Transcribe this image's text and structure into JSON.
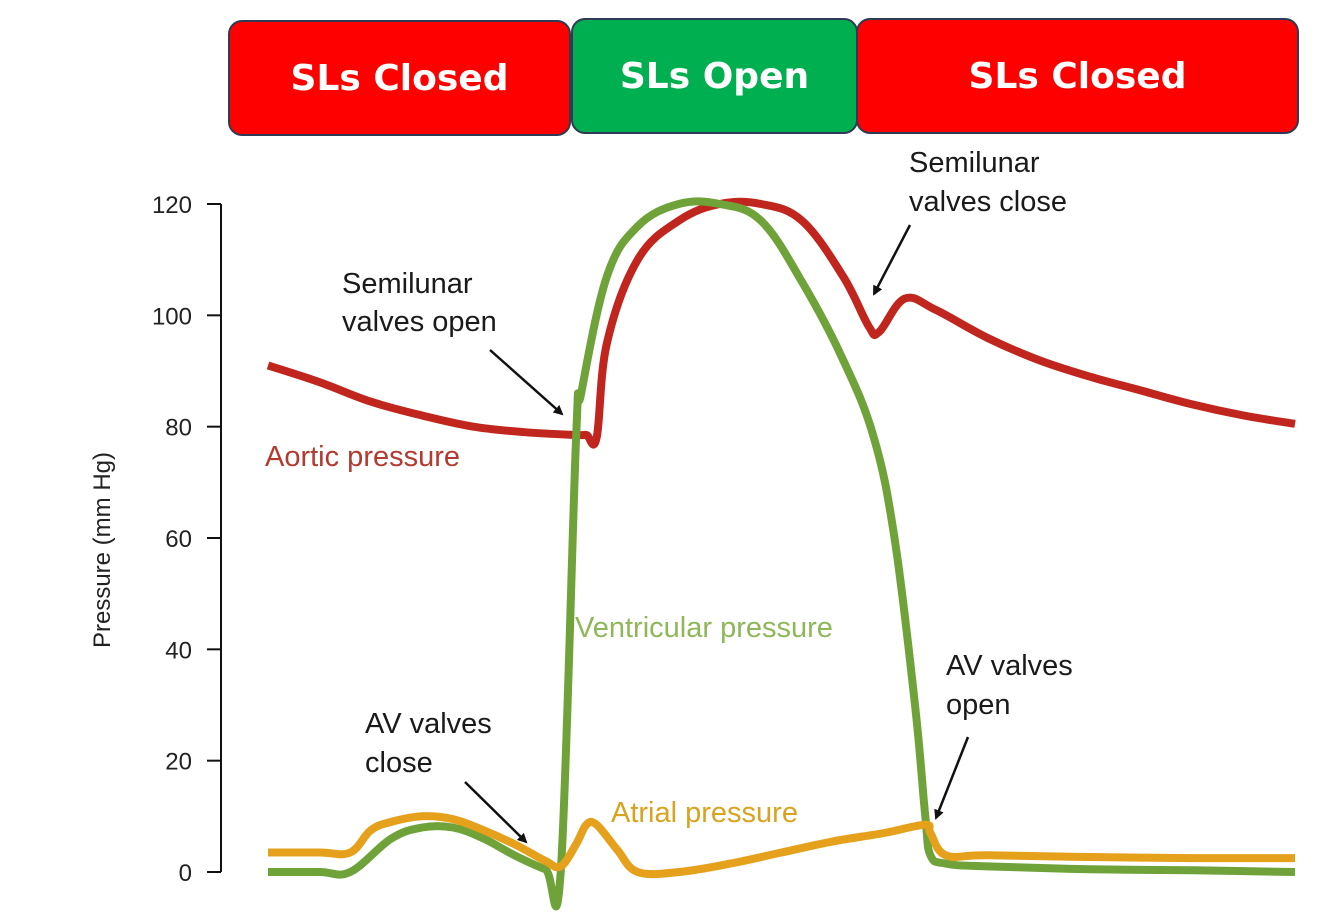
{
  "phase_bars": [
    {
      "label": "SLs Closed",
      "color": "#ff0000"
    },
    {
      "label": "SLs Open",
      "color": "#00b050"
    },
    {
      "label": "SLs Closed",
      "color": "#ff0000"
    }
  ],
  "colors": {
    "aortic": "#c0261e",
    "ventricular": "#6fa33a",
    "atrial": "#e5a11c",
    "aortic_label": "#b23a30",
    "ventricular_label": "#8fb75a",
    "atrial_label": "#d9a21f"
  },
  "annotations": {
    "sl_open": [
      "Semilunar",
      "valves open"
    ],
    "sl_close": [
      "Semilunar",
      "valves close"
    ],
    "av_close": [
      "AV valves",
      "close"
    ],
    "av_open": [
      "AV valves",
      "open"
    ]
  },
  "chart_data": {
    "type": "line",
    "xlabel": "",
    "ylabel": "Pressure (mm Hg)",
    "ylim": [
      0,
      120
    ],
    "yticks": [
      0,
      20,
      40,
      60,
      80,
      100,
      120
    ],
    "xlim": [
      0,
      1
    ],
    "series": [
      {
        "name": "Aortic pressure",
        "x": [
          0.0,
          0.05,
          0.1,
          0.15,
          0.2,
          0.25,
          0.3,
          0.31,
          0.32,
          0.33,
          0.36,
          0.4,
          0.44,
          0.48,
          0.52,
          0.56,
          0.585,
          0.595,
          0.62,
          0.65,
          0.7,
          0.75,
          0.8,
          0.85,
          0.9,
          0.95,
          1.0
        ],
        "values": [
          91,
          88,
          84.5,
          82,
          80,
          79,
          78.5,
          78.5,
          78,
          95,
          110,
          117,
          120,
          120,
          117,
          107,
          98,
          97,
          103,
          101,
          96,
          92,
          89,
          86.5,
          84,
          82,
          80.5
        ]
      },
      {
        "name": "Ventricular pressure",
        "x": [
          0.0,
          0.05,
          0.08,
          0.12,
          0.15,
          0.18,
          0.21,
          0.24,
          0.27,
          0.285,
          0.3,
          0.305,
          0.33,
          0.36,
          0.4,
          0.44,
          0.48,
          0.52,
          0.56,
          0.59,
          0.61,
          0.63,
          0.64,
          0.645,
          0.66,
          0.7,
          0.8,
          0.9,
          1.0
        ],
        "values": [
          0,
          0,
          0,
          6,
          8,
          8,
          6,
          3,
          0.5,
          0,
          78,
          86,
          107,
          116,
          120,
          120,
          117,
          106,
          92,
          78,
          60,
          30,
          10,
          3,
          1.5,
          1,
          0.5,
          0.3,
          0
        ]
      },
      {
        "name": "Atrial pressure",
        "x": [
          0.0,
          0.05,
          0.08,
          0.1,
          0.12,
          0.15,
          0.18,
          0.21,
          0.24,
          0.27,
          0.285,
          0.3,
          0.31,
          0.32,
          0.34,
          0.36,
          0.4,
          0.45,
          0.5,
          0.55,
          0.6,
          0.64,
          0.645,
          0.66,
          0.7,
          0.8,
          0.9,
          1.0
        ],
        "values": [
          3.5,
          3.5,
          3.5,
          7.5,
          9,
          10,
          9.5,
          7.5,
          5,
          2,
          1,
          5,
          8.5,
          8.5,
          4,
          0,
          0,
          1.5,
          3.5,
          5.5,
          7,
          8.5,
          7,
          3,
          3,
          2.7,
          2.5,
          2.5
        ]
      }
    ]
  }
}
